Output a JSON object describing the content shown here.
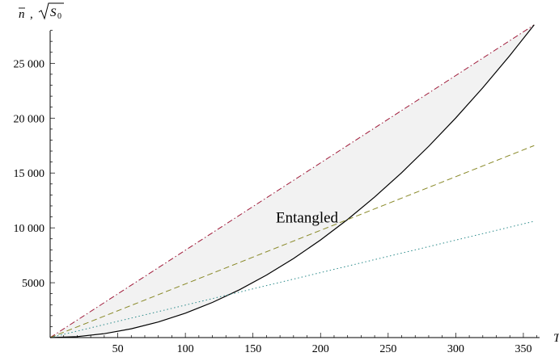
{
  "chart_data": {
    "type": "line",
    "title": "",
    "ylabel_parts": {
      "nbar": "n",
      "separator": ",",
      "sqrt_s": "S",
      "sqrt_s_sub": "0"
    },
    "xlabel": "T",
    "xlim": [
      0,
      362
    ],
    "ylim": [
      0,
      29000
    ],
    "x_ticks": [
      50,
      100,
      150,
      200,
      250,
      300,
      350
    ],
    "x_tick_labels": [
      "50",
      "100",
      "150",
      "200",
      "250",
      "300",
      "350"
    ],
    "y_ticks": [
      5000,
      10000,
      15000,
      20000,
      25000
    ],
    "y_tick_labels": [
      "5000",
      "10 000",
      "15 000",
      "20 000",
      "25 000"
    ],
    "grid": false,
    "legend": "none",
    "annotations": [
      {
        "text": "Entangled",
        "x": 190,
        "y": 10500
      }
    ],
    "shaded_region": {
      "label": "Entangled",
      "between": [
        "upper-dashdot",
        "lower-solid"
      ],
      "x_range": [
        0,
        358
      ],
      "color": "#f2f2f2"
    },
    "series": [
      {
        "id": "upper-dashdot",
        "style": "dash-dot",
        "color": "#a01b3a",
        "x": [
          0,
          358
        ],
        "y": [
          0,
          28500
        ]
      },
      {
        "id": "lower-solid",
        "style": "solid",
        "color": "#000000",
        "x": [
          0,
          20,
          40,
          60,
          80,
          100,
          120,
          140,
          160,
          180,
          200,
          220,
          240,
          260,
          280,
          300,
          320,
          340,
          358
        ],
        "y": [
          0,
          89,
          356,
          800,
          1423,
          2224,
          3202,
          4358,
          5693,
          7205,
          8895,
          10763,
          12809,
          15033,
          17435,
          20015,
          22773,
          25709,
          28500
        ]
      },
      {
        "id": "middle-dashed",
        "style": "dashed",
        "color": "#8a8a2a",
        "x": [
          0,
          358
        ],
        "y": [
          0,
          17500
        ]
      },
      {
        "id": "lower-dotted",
        "style": "dotted",
        "color": "#2a8a8a",
        "x": [
          0,
          358
        ],
        "y": [
          0,
          10600
        ]
      }
    ]
  }
}
